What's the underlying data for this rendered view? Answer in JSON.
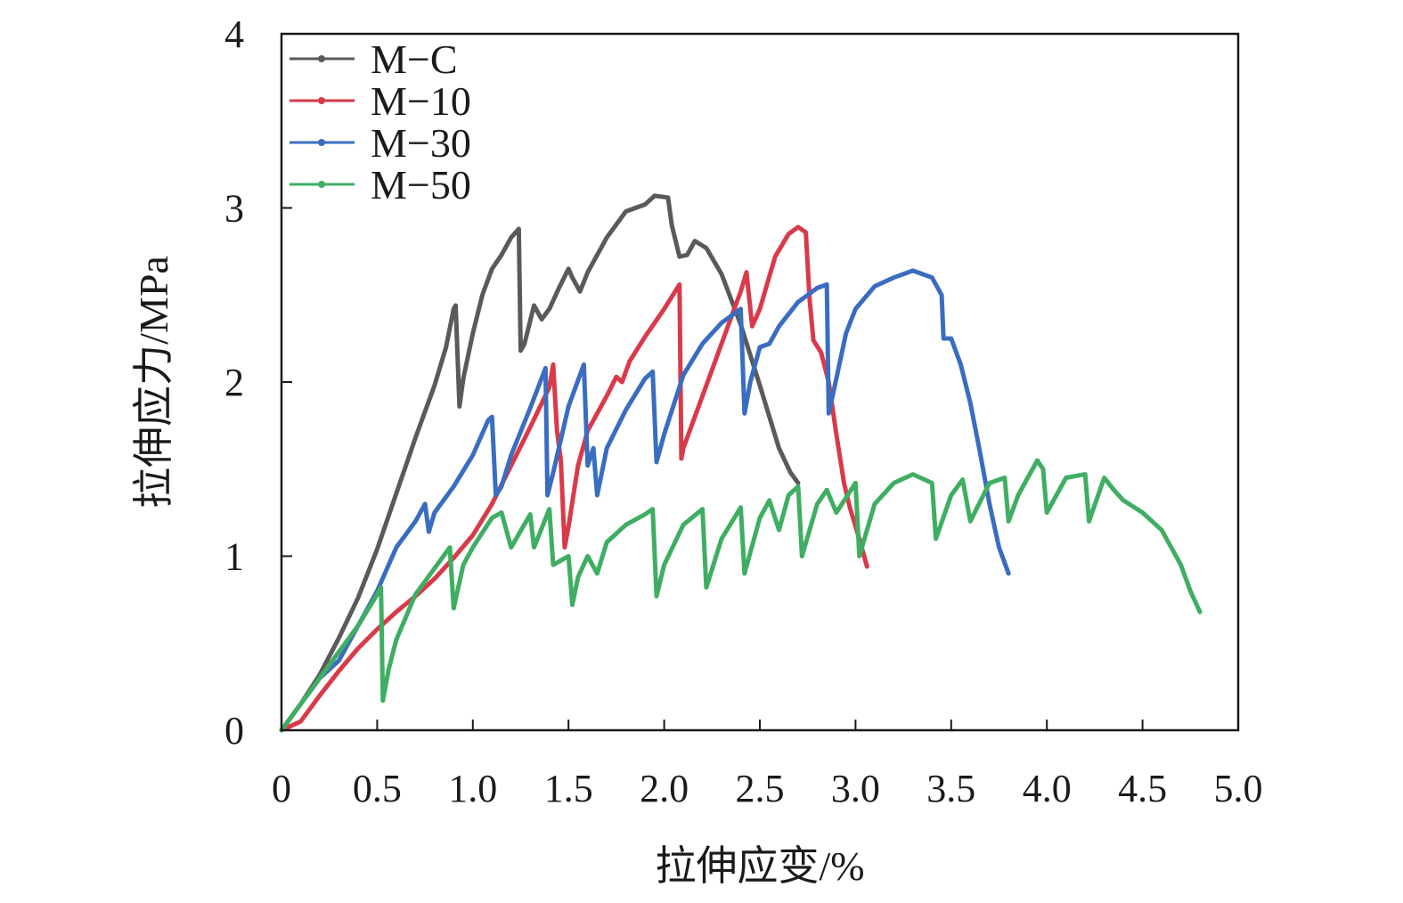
{
  "chart_data": {
    "type": "line",
    "xlabel": "拉伸应变/%",
    "ylabel": "拉伸应力/MPa",
    "xlim": [
      0,
      5.0
    ],
    "ylim": [
      0,
      4
    ],
    "x_ticks": [
      {
        "value": 0,
        "label": "0"
      },
      {
        "value": 0.5,
        "label": "0.5"
      },
      {
        "value": 1.0,
        "label": "1.0"
      },
      {
        "value": 1.5,
        "label": "1.5"
      },
      {
        "value": 2.0,
        "label": "2.0"
      },
      {
        "value": 2.5,
        "label": "2.5"
      },
      {
        "value": 3.0,
        "label": "3.0"
      },
      {
        "value": 3.5,
        "label": "3.5"
      },
      {
        "value": 4.0,
        "label": "4.0"
      },
      {
        "value": 4.5,
        "label": "4.5"
      },
      {
        "value": 5.0,
        "label": "5.0"
      }
    ],
    "y_ticks": [
      {
        "value": 0,
        "label": "0"
      },
      {
        "value": 1,
        "label": "1"
      },
      {
        "value": 2,
        "label": "2"
      },
      {
        "value": 3,
        "label": "3"
      },
      {
        "value": 4,
        "label": "4"
      }
    ],
    "grid": false,
    "legend_position": "top-left",
    "series": [
      {
        "name": "M−C",
        "color": "#5a5a5a",
        "points": [
          [
            0,
            0
          ],
          [
            0.1,
            0.15
          ],
          [
            0.2,
            0.32
          ],
          [
            0.3,
            0.53
          ],
          [
            0.4,
            0.76
          ],
          [
            0.5,
            1.04
          ],
          [
            0.6,
            1.36
          ],
          [
            0.7,
            1.68
          ],
          [
            0.8,
            1.98
          ],
          [
            0.86,
            2.2
          ],
          [
            0.9,
            2.42
          ],
          [
            0.91,
            2.44
          ],
          [
            0.93,
            1.86
          ],
          [
            0.95,
            2.02
          ],
          [
            1.0,
            2.28
          ],
          [
            1.05,
            2.5
          ],
          [
            1.1,
            2.65
          ],
          [
            1.15,
            2.73
          ],
          [
            1.2,
            2.83
          ],
          [
            1.24,
            2.88
          ],
          [
            1.25,
            2.18
          ],
          [
            1.27,
            2.22
          ],
          [
            1.32,
            2.44
          ],
          [
            1.36,
            2.36
          ],
          [
            1.4,
            2.42
          ],
          [
            1.45,
            2.54
          ],
          [
            1.5,
            2.65
          ],
          [
            1.52,
            2.6
          ],
          [
            1.56,
            2.52
          ],
          [
            1.6,
            2.63
          ],
          [
            1.7,
            2.83
          ],
          [
            1.8,
            2.98
          ],
          [
            1.9,
            3.02
          ],
          [
            1.95,
            3.07
          ],
          [
            2.02,
            3.06
          ],
          [
            2.04,
            2.9
          ],
          [
            2.08,
            2.72
          ],
          [
            2.12,
            2.73
          ],
          [
            2.16,
            2.81
          ],
          [
            2.22,
            2.77
          ],
          [
            2.3,
            2.62
          ],
          [
            2.4,
            2.33
          ],
          [
            2.5,
            1.98
          ],
          [
            2.6,
            1.62
          ],
          [
            2.66,
            1.48
          ],
          [
            2.7,
            1.42
          ]
        ]
      },
      {
        "name": "M−10",
        "color": "#d93a49",
        "points": [
          [
            0,
            0
          ],
          [
            0.1,
            0.05
          ],
          [
            0.2,
            0.2
          ],
          [
            0.3,
            0.34
          ],
          [
            0.4,
            0.47
          ],
          [
            0.5,
            0.58
          ],
          [
            0.6,
            0.68
          ],
          [
            0.7,
            0.77
          ],
          [
            0.8,
            0.87
          ],
          [
            0.9,
            0.99
          ],
          [
            1.0,
            1.12
          ],
          [
            1.1,
            1.3
          ],
          [
            1.2,
            1.52
          ],
          [
            1.3,
            1.74
          ],
          [
            1.4,
            1.97
          ],
          [
            1.42,
            2.1
          ],
          [
            1.44,
            1.72
          ],
          [
            1.46,
            1.55
          ],
          [
            1.48,
            1.05
          ],
          [
            1.5,
            1.17
          ],
          [
            1.55,
            1.52
          ],
          [
            1.6,
            1.72
          ],
          [
            1.7,
            1.92
          ],
          [
            1.75,
            2.03
          ],
          [
            1.78,
            2.0
          ],
          [
            1.82,
            2.12
          ],
          [
            1.9,
            2.26
          ],
          [
            2.0,
            2.42
          ],
          [
            2.08,
            2.56
          ],
          [
            2.09,
            1.56
          ],
          [
            2.1,
            1.62
          ],
          [
            2.2,
            1.92
          ],
          [
            2.3,
            2.22
          ],
          [
            2.4,
            2.52
          ],
          [
            2.43,
            2.63
          ],
          [
            2.46,
            2.32
          ],
          [
            2.5,
            2.42
          ],
          [
            2.58,
            2.72
          ],
          [
            2.65,
            2.85
          ],
          [
            2.7,
            2.89
          ],
          [
            2.74,
            2.86
          ],
          [
            2.76,
            2.48
          ],
          [
            2.78,
            2.24
          ],
          [
            2.82,
            2.17
          ],
          [
            2.86,
            2.0
          ],
          [
            2.9,
            1.7
          ],
          [
            2.94,
            1.42
          ],
          [
            2.97,
            1.28
          ],
          [
            3.02,
            1.1
          ],
          [
            3.06,
            0.94
          ]
        ]
      },
      {
        "name": "M−30",
        "color": "#3a6dc0",
        "points": [
          [
            0,
            0
          ],
          [
            0.1,
            0.15
          ],
          [
            0.2,
            0.3
          ],
          [
            0.3,
            0.4
          ],
          [
            0.4,
            0.6
          ],
          [
            0.5,
            0.8
          ],
          [
            0.6,
            1.05
          ],
          [
            0.7,
            1.2
          ],
          [
            0.75,
            1.3
          ],
          [
            0.77,
            1.14
          ],
          [
            0.8,
            1.25
          ],
          [
            0.9,
            1.4
          ],
          [
            1.0,
            1.58
          ],
          [
            1.08,
            1.78
          ],
          [
            1.1,
            1.8
          ],
          [
            1.12,
            1.35
          ],
          [
            1.15,
            1.4
          ],
          [
            1.2,
            1.58
          ],
          [
            1.3,
            1.85
          ],
          [
            1.38,
            2.08
          ],
          [
            1.39,
            1.35
          ],
          [
            1.42,
            1.48
          ],
          [
            1.5,
            1.86
          ],
          [
            1.58,
            2.1
          ],
          [
            1.6,
            1.52
          ],
          [
            1.63,
            1.62
          ],
          [
            1.65,
            1.35
          ],
          [
            1.7,
            1.62
          ],
          [
            1.8,
            1.84
          ],
          [
            1.9,
            2.02
          ],
          [
            1.94,
            2.06
          ],
          [
            1.96,
            1.54
          ],
          [
            2.0,
            1.7
          ],
          [
            2.1,
            2.04
          ],
          [
            2.2,
            2.22
          ],
          [
            2.3,
            2.34
          ],
          [
            2.4,
            2.42
          ],
          [
            2.42,
            1.82
          ],
          [
            2.45,
            2.0
          ],
          [
            2.5,
            2.2
          ],
          [
            2.55,
            2.22
          ],
          [
            2.6,
            2.32
          ],
          [
            2.7,
            2.46
          ],
          [
            2.8,
            2.54
          ],
          [
            2.85,
            2.56
          ],
          [
            2.86,
            1.82
          ],
          [
            2.9,
            2.02
          ],
          [
            2.95,
            2.28
          ],
          [
            3.0,
            2.42
          ],
          [
            3.1,
            2.55
          ],
          [
            3.2,
            2.6
          ],
          [
            3.3,
            2.64
          ],
          [
            3.4,
            2.6
          ],
          [
            3.45,
            2.5
          ],
          [
            3.46,
            2.25
          ],
          [
            3.5,
            2.25
          ],
          [
            3.55,
            2.1
          ],
          [
            3.6,
            1.88
          ],
          [
            3.65,
            1.6
          ],
          [
            3.7,
            1.3
          ],
          [
            3.75,
            1.05
          ],
          [
            3.8,
            0.9
          ]
        ]
      },
      {
        "name": "M−50",
        "color": "#3fae62",
        "points": [
          [
            0,
            0
          ],
          [
            0.1,
            0.15
          ],
          [
            0.2,
            0.3
          ],
          [
            0.3,
            0.45
          ],
          [
            0.4,
            0.6
          ],
          [
            0.5,
            0.78
          ],
          [
            0.52,
            0.82
          ],
          [
            0.53,
            0.17
          ],
          [
            0.56,
            0.35
          ],
          [
            0.6,
            0.52
          ],
          [
            0.7,
            0.78
          ],
          [
            0.8,
            0.93
          ],
          [
            0.88,
            1.05
          ],
          [
            0.9,
            0.7
          ],
          [
            0.95,
            0.95
          ],
          [
            1.0,
            1.05
          ],
          [
            1.1,
            1.22
          ],
          [
            1.15,
            1.25
          ],
          [
            1.2,
            1.05
          ],
          [
            1.3,
            1.24
          ],
          [
            1.32,
            1.05
          ],
          [
            1.4,
            1.27
          ],
          [
            1.42,
            0.95
          ],
          [
            1.5,
            1.0
          ],
          [
            1.52,
            0.72
          ],
          [
            1.55,
            0.88
          ],
          [
            1.6,
            1.0
          ],
          [
            1.65,
            0.9
          ],
          [
            1.7,
            1.08
          ],
          [
            1.8,
            1.18
          ],
          [
            1.9,
            1.24
          ],
          [
            1.94,
            1.27
          ],
          [
            1.96,
            0.77
          ],
          [
            2.0,
            0.95
          ],
          [
            2.1,
            1.18
          ],
          [
            2.2,
            1.27
          ],
          [
            2.22,
            0.82
          ],
          [
            2.3,
            1.1
          ],
          [
            2.4,
            1.28
          ],
          [
            2.42,
            0.9
          ],
          [
            2.5,
            1.22
          ],
          [
            2.55,
            1.32
          ],
          [
            2.6,
            1.15
          ],
          [
            2.65,
            1.35
          ],
          [
            2.7,
            1.4
          ],
          [
            2.72,
            1.0
          ],
          [
            2.8,
            1.3
          ],
          [
            2.85,
            1.38
          ],
          [
            2.9,
            1.25
          ],
          [
            3.0,
            1.42
          ],
          [
            3.02,
            1.0
          ],
          [
            3.1,
            1.3
          ],
          [
            3.2,
            1.42
          ],
          [
            3.3,
            1.47
          ],
          [
            3.4,
            1.42
          ],
          [
            3.42,
            1.1
          ],
          [
            3.5,
            1.35
          ],
          [
            3.56,
            1.44
          ],
          [
            3.6,
            1.2
          ],
          [
            3.7,
            1.42
          ],
          [
            3.78,
            1.45
          ],
          [
            3.8,
            1.2
          ],
          [
            3.85,
            1.35
          ],
          [
            3.9,
            1.45
          ],
          [
            3.95,
            1.55
          ],
          [
            3.98,
            1.5
          ],
          [
            4.0,
            1.25
          ],
          [
            4.1,
            1.45
          ],
          [
            4.2,
            1.47
          ],
          [
            4.22,
            1.2
          ],
          [
            4.3,
            1.45
          ],
          [
            4.35,
            1.38
          ],
          [
            4.4,
            1.32
          ],
          [
            4.5,
            1.25
          ],
          [
            4.6,
            1.15
          ],
          [
            4.7,
            0.95
          ],
          [
            4.75,
            0.8
          ],
          [
            4.8,
            0.68
          ]
        ]
      }
    ]
  }
}
